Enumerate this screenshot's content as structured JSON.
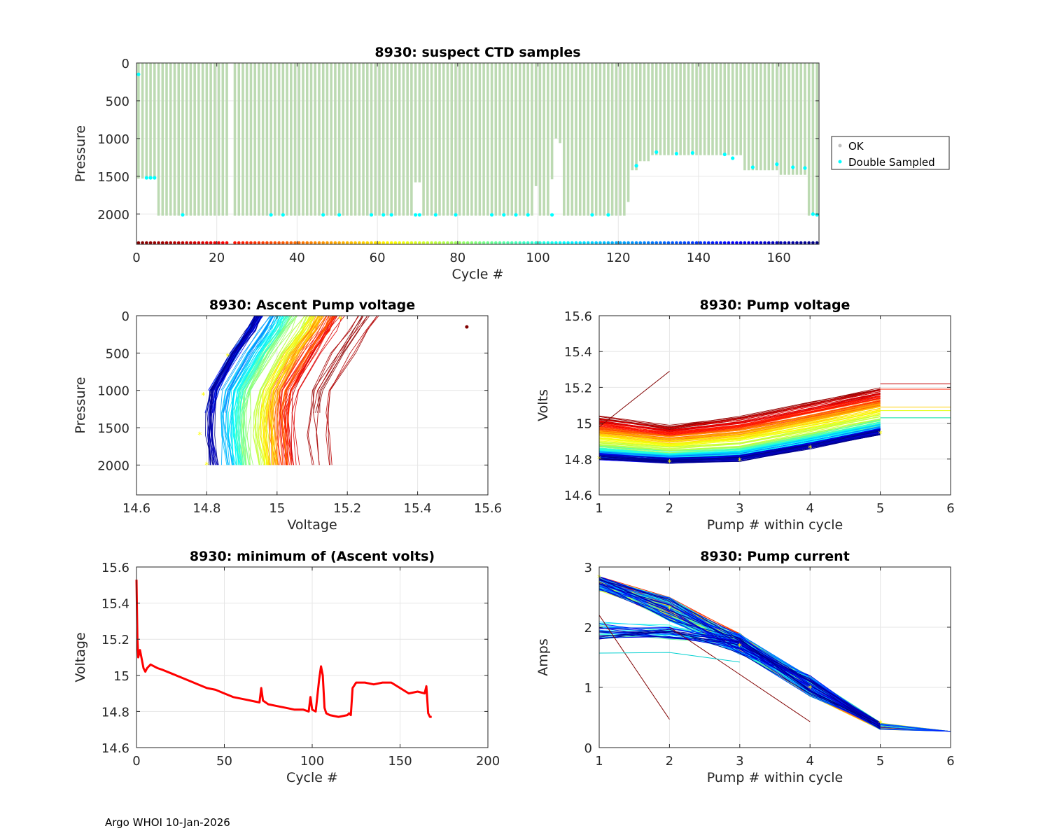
{
  "footer": "Argo WHOI 10-Jan-2026",
  "legend": {
    "ok": "OK",
    "double": "Double Sampled"
  },
  "chart_data": [
    {
      "id": "ctd",
      "type": "bar",
      "title": "8930: suspect CTD samples",
      "xlabel": "Cycle #",
      "ylabel": "Pressure",
      "xlim": [
        0,
        170
      ],
      "ylim": [
        0,
        2400
      ],
      "yreversed": true,
      "xticks": [
        0,
        20,
        40,
        60,
        80,
        100,
        120,
        140,
        160
      ],
      "yticks": [
        0,
        500,
        1000,
        1500,
        2000
      ],
      "missing_cycles": [
        23
      ],
      "depth_segments": [
        {
          "from": 0,
          "to": 4,
          "value": 1530
        },
        {
          "from": 5,
          "to": 22,
          "value": 2020
        },
        {
          "from": 24,
          "to": 68,
          "value": 2020
        },
        {
          "from": 69,
          "to": 70,
          "value": 1580
        },
        {
          "from": 71,
          "to": 98,
          "value": 2020
        },
        {
          "from": 99,
          "to": 99,
          "value": 1630
        },
        {
          "from": 100,
          "to": 102,
          "value": 2020
        },
        {
          "from": 103,
          "to": 103,
          "value": 1540
        },
        {
          "from": 104,
          "to": 104,
          "value": 1000
        },
        {
          "from": 105,
          "to": 105,
          "value": 1060
        },
        {
          "from": 106,
          "to": 106,
          "value": 2020
        },
        {
          "from": 107,
          "to": 121,
          "value": 2020
        },
        {
          "from": 122,
          "to": 122,
          "value": 1840
        },
        {
          "from": 123,
          "to": 124,
          "value": 1420
        },
        {
          "from": 125,
          "to": 127,
          "value": 1300
        },
        {
          "from": 128,
          "to": 150,
          "value": 1220
        },
        {
          "from": 151,
          "to": 159,
          "value": 1420
        },
        {
          "from": 160,
          "to": 166,
          "value": 1480
        },
        {
          "from": 167,
          "to": 169,
          "value": 2020
        }
      ],
      "double_sampled": [
        [
          0,
          150
        ],
        [
          2,
          1520
        ],
        [
          3,
          1520
        ],
        [
          4,
          1520
        ],
        [
          11,
          2010
        ],
        [
          33,
          2010
        ],
        [
          36,
          2010
        ],
        [
          46,
          2010
        ],
        [
          50,
          2010
        ],
        [
          58,
          2010
        ],
        [
          61,
          2010
        ],
        [
          63,
          2010
        ],
        [
          69,
          2010
        ],
        [
          70,
          2010
        ],
        [
          74,
          2010
        ],
        [
          79,
          2010
        ],
        [
          88,
          2010
        ],
        [
          91,
          2010
        ],
        [
          94,
          2010
        ],
        [
          97,
          2010
        ],
        [
          103,
          2010
        ],
        [
          113,
          2010
        ],
        [
          117,
          2010
        ],
        [
          124,
          1360
        ],
        [
          129,
          1180
        ],
        [
          134,
          1200
        ],
        [
          138,
          1190
        ],
        [
          146,
          1210
        ],
        [
          148,
          1260
        ],
        [
          153,
          1380
        ],
        [
          159,
          1340
        ],
        [
          163,
          1380
        ],
        [
          166,
          1390
        ],
        [
          168,
          2000
        ],
        [
          169,
          2010
        ]
      ],
      "colorbar_row_pressure": 2380,
      "colormap": "jet (reversed, cycle 0 = dark red, cycle 169 = dark blue)"
    },
    {
      "id": "ascent",
      "type": "line",
      "title": "8930: Ascent Pump voltage",
      "xlabel": "Voltage",
      "ylabel": "Pressure",
      "xlim": [
        14.6,
        15.6
      ],
      "ylim": [
        0,
        2400
      ],
      "yreversed": true,
      "xticks": [
        "14.6",
        "14.8",
        "15",
        "15.2",
        "15.4",
        "15.6"
      ],
      "yticks": [
        0,
        500,
        1000,
        1500,
        2000
      ],
      "series_count": 170,
      "profile_template": {
        "pressure": [
          0,
          200,
          500,
          1000,
          1300,
          1600,
          2000
        ],
        "voltage_offset": [
          0.0,
          -0.025,
          -0.07,
          -0.13,
          -0.14,
          -0.14,
          -0.13
        ]
      },
      "outlier": {
        "x": 15.54,
        "y": 150
      },
      "min_markers": [
        [
          14.8,
          2000
        ],
        [
          14.78,
          1600
        ],
        [
          14.79,
          1070
        ],
        [
          14.86,
          550
        ],
        [
          15.18,
          50
        ]
      ]
    },
    {
      "id": "pumpv",
      "type": "line",
      "title": "8930: Pump voltage",
      "xlabel": "Pump # within cycle",
      "ylabel": "Volts",
      "xlim": [
        1,
        6
      ],
      "ylim": [
        14.6,
        15.6
      ],
      "xticks": [
        "1",
        "2",
        "3",
        "4",
        "5",
        "6"
      ],
      "yticks": [
        "14.6",
        "14.8",
        "15",
        "15.2",
        "15.4",
        "15.6"
      ],
      "series_count": 170,
      "envelope_top": [
        15.08,
        15.02,
        15.08,
        15.16,
        15.24
      ],
      "envelope_bottom": [
        14.8,
        14.78,
        14.79,
        14.86,
        14.94
      ],
      "flat_extensions": [
        15.22,
        15.19,
        15.09,
        15.07,
        15.03
      ],
      "star_markers": [
        [
          1,
          14.8
        ],
        [
          2,
          14.78
        ],
        [
          3,
          14.79
        ],
        [
          4,
          14.86
        ],
        [
          5,
          14.94
        ]
      ]
    },
    {
      "id": "minv",
      "type": "line",
      "title": "8930: minimum of (Ascent volts)",
      "xlabel": "Cycle #",
      "ylabel": "Voltage",
      "xlim": [
        0,
        200
      ],
      "ylim": [
        14.6,
        15.6
      ],
      "xticks": [
        "0",
        "50",
        "100",
        "150",
        "200"
      ],
      "yticks": [
        "14.6",
        "14.8",
        "15",
        "15.2",
        "15.4",
        "15.6"
      ],
      "color": "#ff0000",
      "x": [
        0,
        0.5,
        1,
        2,
        3,
        4,
        5,
        6,
        8,
        10,
        12,
        15,
        20,
        25,
        30,
        35,
        40,
        45,
        50,
        55,
        60,
        65,
        70,
        71,
        72,
        75,
        80,
        85,
        90,
        95,
        98,
        99,
        100,
        102,
        104,
        105,
        106,
        107,
        108,
        110,
        115,
        120,
        121,
        122,
        123,
        125,
        130,
        135,
        140,
        145,
        150,
        155,
        160,
        164,
        165,
        166,
        167,
        168
      ],
      "y": [
        15.53,
        15.2,
        15.1,
        15.14,
        15.09,
        15.04,
        15.02,
        15.04,
        15.06,
        15.05,
        15.04,
        15.03,
        15.01,
        14.99,
        14.97,
        14.95,
        14.93,
        14.92,
        14.9,
        14.88,
        14.87,
        14.86,
        14.85,
        14.93,
        14.86,
        14.84,
        14.83,
        14.82,
        14.81,
        14.81,
        14.8,
        14.88,
        14.81,
        14.8,
        14.98,
        15.05,
        15.0,
        14.82,
        14.79,
        14.78,
        14.77,
        14.78,
        14.79,
        14.78,
        14.93,
        14.96,
        14.96,
        14.95,
        14.96,
        14.96,
        14.93,
        14.9,
        14.91,
        14.9,
        14.94,
        14.79,
        14.77,
        14.77
      ]
    },
    {
      "id": "pumpc",
      "type": "line",
      "title": "8930: Pump current",
      "xlabel": "Pump # within cycle",
      "ylabel": "Amps",
      "xlim": [
        1,
        6
      ],
      "ylim": [
        0,
        3
      ],
      "xticks": [
        "1",
        "2",
        "3",
        "4",
        "5",
        "6"
      ],
      "yticks": [
        "0",
        "1",
        "2",
        "3"
      ],
      "series_count": 170,
      "typical": [
        2.82,
        2.3,
        1.68,
        1.0,
        0.36
      ],
      "tail_to_pump6": 0.27,
      "outliers": [
        [
          [
            1,
            2.2
          ],
          [
            2,
            0.47
          ]
        ],
        [
          [
            2,
            2.0
          ],
          [
            4,
            0.43
          ]
        ],
        [
          [
            1,
            1.57
          ],
          [
            2,
            1.58
          ],
          [
            3,
            1.42
          ]
        ]
      ],
      "star_markers": [
        [
          1,
          2.82
        ],
        [
          2,
          2.3
        ],
        [
          3,
          1.68
        ],
        [
          4,
          0.98
        ],
        [
          5,
          0.4
        ]
      ]
    }
  ]
}
